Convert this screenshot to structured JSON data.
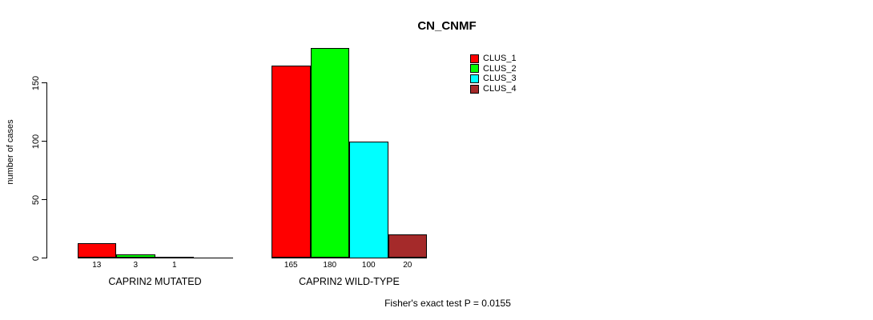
{
  "chart_data": {
    "type": "bar",
    "title": "CN_CNMF",
    "ylabel": "number of cases",
    "ylim": [
      0,
      150
    ],
    "yticks": [
      0,
      50,
      100,
      150
    ],
    "grid": false,
    "legend_position": "top-right",
    "categories": [
      "CAPRIN2 MUTATED",
      "CAPRIN2 WILD-TYPE"
    ],
    "series": [
      {
        "name": "CLUS_1",
        "color": "#FF0000",
        "values": [
          13,
          165
        ]
      },
      {
        "name": "CLUS_2",
        "color": "#00FF00",
        "values": [
          3,
          180
        ]
      },
      {
        "name": "CLUS_3",
        "color": "#00FFFF",
        "values": [
          1,
          100
        ]
      },
      {
        "name": "CLUS_4",
        "color": "#A52A2A",
        "values": [
          0,
          20
        ]
      }
    ],
    "value_labels": [
      [
        "13",
        "3",
        "1",
        ""
      ],
      [
        "165",
        "180",
        "100",
        "20"
      ]
    ],
    "annotation": "Fisher's exact test P = 0.0155",
    "colors": {
      "axis": "#000000",
      "background": "#FFFFFF"
    }
  }
}
